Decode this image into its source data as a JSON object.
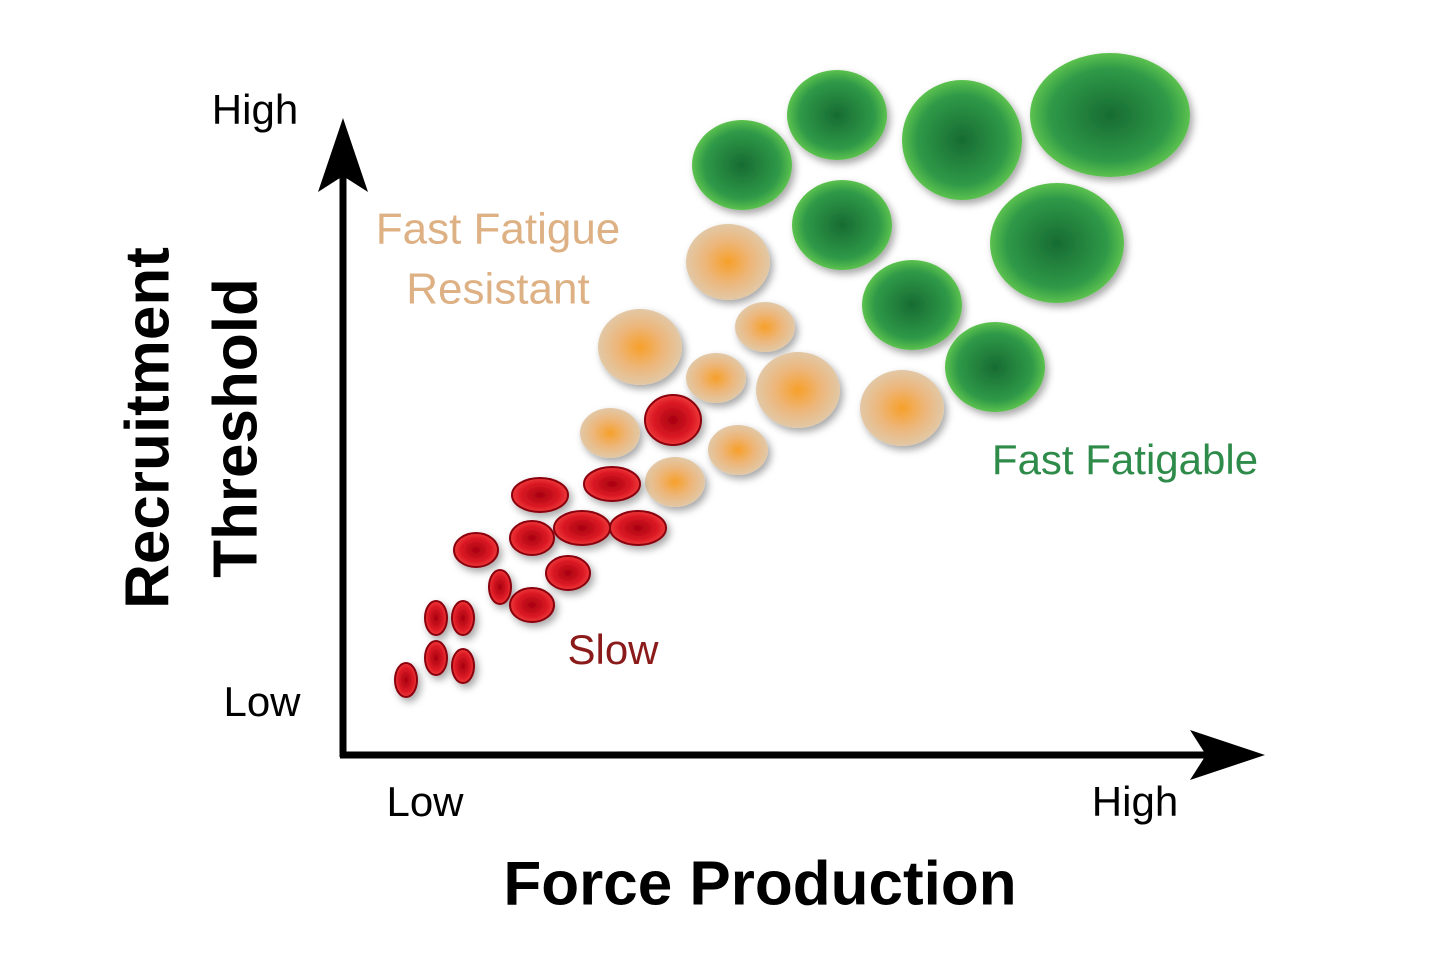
{
  "y_axis": {
    "title": [
      "Recruitment",
      "Threshold"
    ],
    "high": "High",
    "low": "Low"
  },
  "x_axis": {
    "title": "Force Production",
    "low": "Low",
    "high": "High"
  },
  "groups": {
    "fast_fatigue_resistant": [
      "Fast Fatigue",
      "Resistant"
    ],
    "fast_fatigable": "Fast Fatigable",
    "slow": "Slow"
  }
}
